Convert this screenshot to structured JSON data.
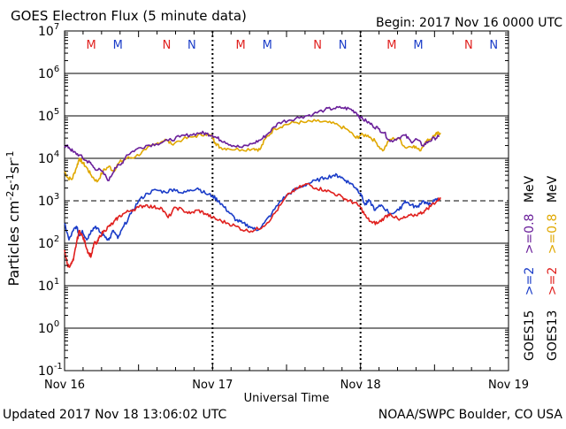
{
  "header": {
    "title": "GOES Electron Flux (5 minute data)",
    "begin": "Begin: 2017 Nov 16 0000 UTC"
  },
  "footer": {
    "updated": "Updated 2017 Nov 18 13:06:02 UTC",
    "credit": "NOAA/SWPC Boulder, CO USA"
  },
  "colors": {
    "goes15_2mev": "#1a3cc8",
    "goes13_2mev": "#e0201e",
    "goes15_08mev": "#6a1f9a",
    "goes13_08mev": "#e0a800",
    "marker_m_red": "#e0201e",
    "marker_m_blue": "#1a3cc8"
  },
  "chart_data": {
    "type": "line",
    "title": "GOES Electron Flux (5 minute data)",
    "xlabel": "Universal Time",
    "ylabel": "Particles cm-2s-1sr-1",
    "x_unit": "days since 2017 Nov 16 0000 UTC",
    "xlim": [
      0,
      3
    ],
    "ylim_log10": [
      -1,
      7
    ],
    "x_ticks": [
      {
        "x": 0,
        "label": "Nov 16"
      },
      {
        "x": 1,
        "label": "Nov 17"
      },
      {
        "x": 2,
        "label": "Nov 18"
      },
      {
        "x": 3,
        "label": "Nov 19"
      }
    ],
    "y_ticks": [
      {
        "exp": 7,
        "base": "10",
        "sup": "7"
      },
      {
        "exp": 6,
        "base": "10",
        "sup": "6"
      },
      {
        "exp": 5,
        "base": "10",
        "sup": "5"
      },
      {
        "exp": 4,
        "base": "10",
        "sup": "4"
      },
      {
        "exp": 3,
        "base": "10",
        "sup": "3"
      },
      {
        "exp": 2,
        "base": "10",
        "sup": "2"
      },
      {
        "exp": 1,
        "base": "10",
        "sup": "1"
      },
      {
        "exp": 0,
        "base": "10",
        "sup": "0"
      },
      {
        "exp": -1,
        "base": "10",
        "sup": "-1"
      }
    ],
    "threshold": {
      "value": 1000,
      "style": "dashed"
    },
    "grid": "horizontal at each decade",
    "day_boundaries": [
      1,
      2
    ],
    "magnetopause_markers": [
      {
        "x": 0.18,
        "label": "M",
        "sat": "GOES13"
      },
      {
        "x": 0.36,
        "label": "M",
        "sat": "GOES15"
      },
      {
        "x": 0.69,
        "label": "N",
        "sat": "GOES13"
      },
      {
        "x": 0.86,
        "label": "N",
        "sat": "GOES15"
      },
      {
        "x": 1.19,
        "label": "M",
        "sat": "GOES13"
      },
      {
        "x": 1.37,
        "label": "M",
        "sat": "GOES15"
      },
      {
        "x": 1.71,
        "label": "N",
        "sat": "GOES13"
      },
      {
        "x": 1.88,
        "label": "N",
        "sat": "GOES15"
      },
      {
        "x": 2.21,
        "label": "M",
        "sat": "GOES13"
      },
      {
        "x": 2.39,
        "label": "M",
        "sat": "GOES15"
      },
      {
        "x": 2.73,
        "label": "N",
        "sat": "GOES13"
      },
      {
        "x": 2.9,
        "label": "N",
        "sat": "GOES15"
      }
    ],
    "legend": {
      "placement": "right side, vertical",
      "row1": {
        "sat": "GOES15",
        "label_2mev": ">=2",
        "label_08mev": ">=0.8",
        "unit": "MeV"
      },
      "row2": {
        "sat": "GOES13",
        "label_2mev": ">=2",
        "label_08mev": ">=0.8",
        "unit": "MeV"
      }
    },
    "series": [
      {
        "name": "GOES13 >=0.8 MeV",
        "color_key": "goes13_08mev",
        "x": [
          0.0,
          0.02,
          0.05,
          0.08,
          0.1,
          0.12,
          0.15,
          0.18,
          0.22,
          0.26,
          0.3,
          0.33,
          0.37,
          0.42,
          0.48,
          0.55,
          0.62,
          0.68,
          0.72,
          0.8,
          0.88,
          0.95,
          1.0,
          1.02,
          1.05,
          1.1,
          1.2,
          1.28,
          1.32,
          1.36,
          1.42,
          1.48,
          1.55,
          1.62,
          1.7,
          1.78,
          1.85,
          1.92,
          1.97,
          2.0,
          2.05,
          2.1,
          2.15,
          2.2,
          2.26,
          2.3,
          2.36,
          2.4,
          2.44,
          2.47,
          2.5,
          2.52,
          2.54
        ],
        "values": [
          5000,
          3500,
          3200,
          6000,
          10000,
          8000,
          6000,
          4000,
          2800,
          5000,
          6500,
          5000,
          8000,
          10000,
          11000,
          16000,
          22000,
          28000,
          22000,
          28000,
          33000,
          38000,
          32000,
          23000,
          18000,
          17000,
          16000,
          17000,
          16000,
          30000,
          50000,
          60000,
          70000,
          70000,
          75000,
          70000,
          60000,
          45000,
          30000,
          35000,
          35000,
          25000,
          15000,
          28000,
          30000,
          18000,
          20000,
          15000,
          25000,
          28000,
          35000,
          38000,
          40000
        ]
      },
      {
        "name": "GOES15 >=0.8 MeV",
        "color_key": "goes15_08mev",
        "x": [
          0.0,
          0.03,
          0.06,
          0.1,
          0.14,
          0.17,
          0.2,
          0.25,
          0.3,
          0.34,
          0.38,
          0.42,
          0.48,
          0.55,
          0.62,
          0.7,
          0.78,
          0.85,
          0.92,
          0.96,
          1.0,
          1.03,
          1.08,
          1.14,
          1.2,
          1.28,
          1.33,
          1.38,
          1.45,
          1.52,
          1.6,
          1.68,
          1.76,
          1.82,
          1.88,
          1.93,
          1.97,
          2.0,
          2.04,
          2.08,
          2.12,
          2.16,
          2.2,
          2.25,
          2.3,
          2.34,
          2.38,
          2.42,
          2.46,
          2.5,
          2.53
        ],
        "values": [
          20000,
          18000,
          14000,
          12000,
          9000,
          8000,
          6000,
          5000,
          3000,
          6000,
          7000,
          12000,
          16000,
          20000,
          22000,
          26000,
          32000,
          36000,
          40000,
          38000,
          35000,
          30000,
          25000,
          20000,
          18000,
          23000,
          28000,
          40000,
          70000,
          80000,
          95000,
          110000,
          140000,
          150000,
          155000,
          145000,
          120000,
          90000,
          75000,
          60000,
          50000,
          40000,
          25000,
          30000,
          35000,
          25000,
          28000,
          20000,
          25000,
          30000,
          32000
        ]
      },
      {
        "name": "GOES15 >=2 MeV",
        "color_key": "goes15_2mev",
        "x": [
          0.0,
          0.03,
          0.06,
          0.08,
          0.1,
          0.12,
          0.15,
          0.18,
          0.21,
          0.24,
          0.27,
          0.3,
          0.33,
          0.36,
          0.4,
          0.45,
          0.5,
          0.56,
          0.62,
          0.68,
          0.74,
          0.8,
          0.85,
          0.9,
          0.95,
          1.0,
          1.04,
          1.08,
          1.12,
          1.16,
          1.2,
          1.25,
          1.3,
          1.35,
          1.4,
          1.46,
          1.52,
          1.58,
          1.64,
          1.7,
          1.76,
          1.82,
          1.86,
          1.9,
          1.94,
          1.97,
          2.0,
          2.03,
          2.06,
          2.1,
          2.14,
          2.2,
          2.26,
          2.3,
          2.34,
          2.38,
          2.42,
          2.46,
          2.5,
          2.53
        ],
        "values": [
          300,
          120,
          200,
          250,
          150,
          200,
          120,
          200,
          250,
          180,
          150,
          120,
          200,
          130,
          250,
          500,
          1000,
          1500,
          1800,
          1600,
          1900,
          1500,
          1800,
          2000,
          1500,
          1300,
          1000,
          700,
          500,
          350,
          300,
          250,
          200,
          300,
          500,
          1000,
          1500,
          2000,
          2500,
          3000,
          3500,
          4000,
          3800,
          3000,
          2500,
          2000,
          1500,
          800,
          1000,
          600,
          800,
          500,
          600,
          1000,
          800,
          700,
          1000,
          800,
          1000,
          1100
        ]
      },
      {
        "name": "GOES13 >=2 MeV",
        "color_key": "goes13_2mev",
        "x": [
          0.0,
          0.02,
          0.04,
          0.06,
          0.08,
          0.1,
          0.12,
          0.14,
          0.16,
          0.18,
          0.2,
          0.22,
          0.24,
          0.27,
          0.3,
          0.33,
          0.36,
          0.4,
          0.45,
          0.5,
          0.55,
          0.6,
          0.65,
          0.7,
          0.75,
          0.8,
          0.85,
          0.9,
          0.95,
          1.0,
          1.04,
          1.1,
          1.16,
          1.22,
          1.28,
          1.34,
          1.4,
          1.46,
          1.52,
          1.58,
          1.64,
          1.7,
          1.76,
          1.82,
          1.88,
          1.92,
          1.96,
          2.0,
          2.04,
          2.08,
          2.12,
          2.16,
          2.2,
          2.26,
          2.3,
          2.35,
          2.4,
          2.44,
          2.48,
          2.52,
          2.54
        ],
        "values": [
          70,
          30,
          30,
          40,
          100,
          200,
          150,
          100,
          60,
          50,
          100,
          100,
          150,
          200,
          250,
          300,
          400,
          500,
          600,
          700,
          800,
          700,
          700,
          400,
          700,
          600,
          500,
          600,
          500,
          400,
          350,
          300,
          250,
          200,
          200,
          250,
          400,
          800,
          1500,
          2000,
          2500,
          2000,
          1800,
          1500,
          1200,
          1000,
          900,
          700,
          400,
          300,
          300,
          400,
          500,
          350,
          400,
          450,
          500,
          600,
          800,
          1000,
          1200
        ]
      }
    ]
  }
}
